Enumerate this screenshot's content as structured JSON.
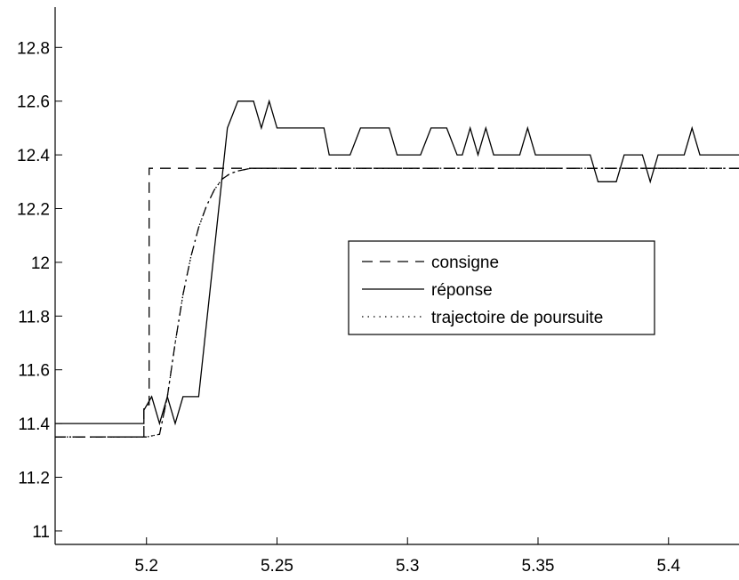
{
  "chart_data": {
    "type": "line",
    "title": "",
    "xlabel": "",
    "ylabel": "",
    "xlim": [
      5.165,
      5.427
    ],
    "ylim": [
      10.95,
      12.95
    ],
    "x_ticks": [
      5.2,
      5.25,
      5.3,
      5.35,
      5.4
    ],
    "x_tick_labels": [
      "5.2",
      "5.25",
      "5.3",
      "5.35",
      "5.4"
    ],
    "y_ticks": [
      11,
      11.2,
      11.4,
      11.6,
      11.8,
      12,
      12.2,
      12.4,
      12.6,
      12.8
    ],
    "y_tick_labels": [
      "11",
      "11.2",
      "11.4",
      "11.6",
      "11.8",
      "12",
      "12.2",
      "12.4",
      "12.6",
      "12.8"
    ],
    "grid": false,
    "legend_position": "center-right",
    "series": [
      {
        "name": "consigne",
        "style": "dashed",
        "color": "#000000",
        "x": [
          5.165,
          5.199,
          5.199,
          5.201,
          5.201,
          5.427
        ],
        "y": [
          11.35,
          11.35,
          11.47,
          11.47,
          12.35,
          12.35
        ]
      },
      {
        "name": "réponse",
        "style": "solid",
        "color": "#000000",
        "x": [
          5.165,
          5.199,
          5.199,
          5.202,
          5.205,
          5.208,
          5.211,
          5.214,
          5.217,
          5.22,
          5.231,
          5.235,
          5.241,
          5.244,
          5.247,
          5.25,
          5.268,
          5.27,
          5.278,
          5.282,
          5.293,
          5.296,
          5.305,
          5.309,
          5.315,
          5.319,
          5.321,
          5.324,
          5.327,
          5.33,
          5.333,
          5.343,
          5.346,
          5.349,
          5.37,
          5.373,
          5.38,
          5.383,
          5.39,
          5.393,
          5.396,
          5.406,
          5.409,
          5.412,
          5.427
        ],
        "y": [
          11.4,
          11.4,
          11.45,
          11.5,
          11.4,
          11.5,
          11.4,
          11.5,
          11.5,
          11.5,
          12.5,
          12.6,
          12.6,
          12.5,
          12.6,
          12.5,
          12.5,
          12.4,
          12.4,
          12.5,
          12.5,
          12.4,
          12.4,
          12.5,
          12.5,
          12.4,
          12.4,
          12.5,
          12.4,
          12.5,
          12.4,
          12.4,
          12.5,
          12.4,
          12.4,
          12.3,
          12.3,
          12.4,
          12.4,
          12.3,
          12.4,
          12.4,
          12.5,
          12.4,
          12.4
        ]
      },
      {
        "name": "trajectoire de poursuite",
        "style": "dotted",
        "color": "#000000",
        "x": [
          5.165,
          5.2,
          5.205,
          5.208,
          5.211,
          5.214,
          5.217,
          5.22,
          5.223,
          5.226,
          5.229,
          5.232,
          5.235,
          5.24,
          5.25,
          5.427
        ],
        "y": [
          11.35,
          11.35,
          11.36,
          11.5,
          11.7,
          11.88,
          12.02,
          12.13,
          12.21,
          12.27,
          12.31,
          12.33,
          12.34,
          12.35,
          12.35,
          12.35
        ]
      },
      {
        "name": "",
        "style": "dashdot",
        "color": "#000000",
        "x": [
          5.165,
          5.2,
          5.205,
          5.208,
          5.211,
          5.214,
          5.217,
          5.22,
          5.223,
          5.226,
          5.229,
          5.232,
          5.235,
          5.24,
          5.25,
          5.427
        ],
        "y": [
          11.35,
          11.35,
          11.36,
          11.5,
          11.7,
          11.88,
          12.02,
          12.13,
          12.21,
          12.27,
          12.31,
          12.33,
          12.34,
          12.35,
          12.35,
          12.35
        ]
      }
    ]
  }
}
